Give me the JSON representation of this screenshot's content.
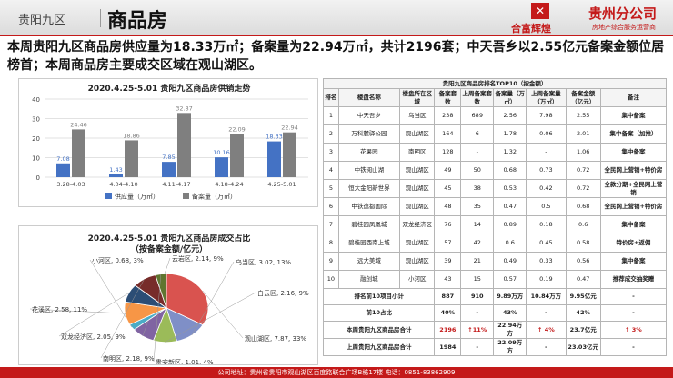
{
  "header": {
    "region": "贵阳九区",
    "title": "商品房",
    "logo_mark": "✕",
    "logo_name": "合富辉煌",
    "branch": "贵州分公司",
    "branch_sub": "房地产综合服务运营商"
  },
  "summary": "本周贵阳九区商品房供应量为18.33万㎡；备案量为22.94万㎡，共计2196套；中天吾乡以2.55亿元备案金额位居榜首；本周商品房主要成交区域在观山湖区。",
  "footer": "公司地址：贵州省贵阳市观山湖区百度路联合广场B栋17楼 电话：0851-83862909",
  "chart_data": [
    {
      "type": "bar",
      "title": "2020.4.25-5.01 贵阳九区商品房供销走势",
      "categories": [
        "3.28-4.03",
        "4.04-4.10",
        "4.11-4.17",
        "4.18-4.24",
        "4.25-5.01"
      ],
      "series": [
        {
          "name": "供应量（万㎡）",
          "color": "#4472c4",
          "values": [
            7.08,
            1.43,
            7.85,
            10.16,
            18.33
          ]
        },
        {
          "name": "备案量（万㎡）",
          "color": "#7f7f7f",
          "values": [
            24.46,
            18.86,
            32.87,
            22.09,
            22.94
          ]
        }
      ],
      "yticks": [
        0,
        10,
        20,
        30,
        40
      ],
      "ylim": [
        0,
        40
      ],
      "grid": true,
      "legend": "bottom"
    },
    {
      "type": "pie",
      "title": "2020.4.25-5.01 贵阳九区商品房成交占比",
      "subtitle": "（按备案金额/亿元）",
      "slices": [
        {
          "label": "观山湖区, 7.87, 33%",
          "value": 7.87,
          "color": "#d9534f"
        },
        {
          "label": "乌当区, 3.02, 13%",
          "value": 3.02,
          "color": "#7f8fc7"
        },
        {
          "label": "白云区, 2.16, 9%",
          "value": 2.16,
          "color": "#9bbb59"
        },
        {
          "label": "云岩区, 2.14, 9%",
          "value": 2.14,
          "color": "#8064a2"
        },
        {
          "label": "小河区, 0.68, 3%",
          "value": 0.68,
          "color": "#4bacc6"
        },
        {
          "label": "花溪区, 2.58, 11%",
          "value": 2.58,
          "color": "#f79646"
        },
        {
          "label": "双龙经济区, 2.05, 9%",
          "value": 2.05,
          "color": "#2c4d75"
        },
        {
          "label": "南明区, 2.18, 9%",
          "value": 2.18,
          "color": "#772c2a"
        },
        {
          "label": "贵安新区, 1.01, 4%",
          "value": 1.01,
          "color": "#5f7530"
        }
      ]
    }
  ],
  "table": {
    "title": "贵阳九区商品房排名TOP10（按金额）",
    "headers": [
      "排名",
      "楼盘名称",
      "楼盘所在区域",
      "备案套数",
      "上周备案套数",
      "备案量（万㎡）",
      "上周备案量（万㎡）",
      "备案金额（亿元）",
      "备注"
    ],
    "rows": [
      [
        "1",
        "中天吾乡",
        "乌当区",
        "238",
        "689",
        "2.56",
        "7.98",
        "2.55",
        "集中备案"
      ],
      [
        "2",
        "万科麓驿公园",
        "观山湖区",
        "164",
        "6",
        "1.78",
        "0.06",
        "2.01",
        "集中备案（加推）"
      ],
      [
        "3",
        "花果园",
        "南明区",
        "128",
        "-",
        "1.32",
        "-",
        "1.06",
        "集中备案"
      ],
      [
        "4",
        "中铁阅山湖",
        "观山湖区",
        "49",
        "50",
        "0.68",
        "0.73",
        "0.72",
        "全民网上营销+特价房"
      ],
      [
        "5",
        "恒大金阳新世界",
        "观山湖区",
        "45",
        "38",
        "0.53",
        "0.42",
        "0.72",
        "全款分期+全民网上营销"
      ],
      [
        "6",
        "中铁逸都国际",
        "观山湖区",
        "48",
        "35",
        "0.47",
        "0.5",
        "0.68",
        "全民网上营销+特价房"
      ],
      [
        "7",
        "碧桂园凤凰城",
        "双龙经济区",
        "76",
        "14",
        "0.89",
        "0.18",
        "0.6",
        "集中备案"
      ],
      [
        "8",
        "碧桂园西南上城",
        "观山湖区",
        "57",
        "42",
        "0.6",
        "0.45",
        "0.58",
        "特价房+返佣"
      ],
      [
        "9",
        "远大美域",
        "观山湖区",
        "39",
        "21",
        "0.49",
        "0.33",
        "0.56",
        "集中备案"
      ],
      [
        "10",
        "融创城",
        "小河区",
        "43",
        "15",
        "0.57",
        "0.19",
        "0.47",
        "推荐成交抽奖赠"
      ]
    ],
    "sum_rows": [
      {
        "label": "排名前10项目小计",
        "c1": "887",
        "c2": "910",
        "c3": "9.89万方",
        "c4": "10.84万方",
        "c5": "9.95亿元",
        "c6": "-"
      },
      {
        "label": "前10占比",
        "c1": "40%",
        "c2": "-",
        "c3": "43%",
        "c4": "-",
        "c5": "42%",
        "c6": "-"
      },
      {
        "label": "本周贵阳九区商品房合计",
        "c1": "2196",
        "c2": "↑11%",
        "c3": "22.94万方",
        "c4": "↑ 4%",
        "c5": "23.7亿元",
        "c6": "↑ 3%"
      },
      {
        "label": "上周贵阳九区商品房合计",
        "c1": "1984",
        "c2": "-",
        "c3": "22.09万方",
        "c4": "-",
        "c5": "23.03亿元",
        "c6": "-"
      }
    ]
  }
}
